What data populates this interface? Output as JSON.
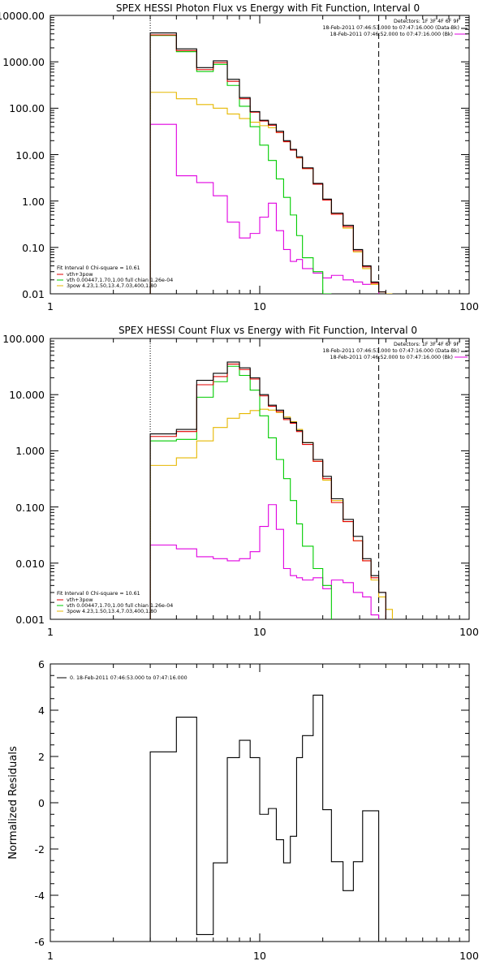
{
  "colors": {
    "black": "#000000",
    "red": "#e00000",
    "green": "#00cc00",
    "yellow": "#e6b800",
    "magenta": "#e000e0",
    "orange": "#ff9900"
  },
  "chart_data": [
    {
      "type": "line",
      "scale": "loglog",
      "title": "SPEX HESSI Photon Flux vs Energy with Fit Function, Interval 0",
      "xlabel": "",
      "ylabel": "",
      "xlim": [
        1,
        100
      ],
      "ylim": [
        0.01,
        10000
      ],
      "x_ticks": [
        "1",
        "10",
        "100"
      ],
      "y_ticks": [
        "10000.00",
        "1000.00",
        "100.00",
        "10.00",
        "1.00",
        "0.10",
        "0.01"
      ],
      "legend_tr": [
        "Detectors: 1F 3F 4F 6F 9F",
        "18-Feb-2011 07:46:53.000 to 07:47:16.000 (Data-Bk)",
        "18-Feb-2011 07:46:52.000 to 07:47:16.000 (Bk)"
      ],
      "legend_bl": [
        "Fit Interval 0   Chi-square = 10.61",
        "vth+3pow",
        "vth 0.00447,1.70,1.00  full chian 1.26e-04",
        "3pow 4.23,1.50,13.4,7.03,400,1.80"
      ],
      "vlines": [
        3,
        37
      ],
      "series": [
        {
          "legend": "Data-Bk",
          "edges": [
            3,
            4,
            5,
            6,
            7,
            8,
            9,
            10,
            11,
            12,
            13,
            14,
            15,
            16,
            18,
            20,
            22,
            25,
            28,
            31,
            34,
            37,
            40
          ],
          "values": [
            4200,
            1900,
            750,
            1050,
            420,
            170,
            85,
            55,
            45,
            32,
            20,
            13,
            9,
            5.2,
            2.4,
            1.1,
            0.55,
            0.3,
            0.09,
            0.04,
            0.018,
            0.011
          ]
        },
        {
          "legend": "vth+3pow",
          "edges": [
            3,
            4,
            5,
            6,
            7,
            8,
            9,
            10,
            11,
            12,
            13,
            14,
            15,
            16,
            18,
            20,
            22,
            25,
            28,
            31,
            34,
            37,
            40
          ],
          "values": [
            3800,
            1750,
            680,
            960,
            380,
            160,
            82,
            53,
            43,
            30,
            19,
            12.5,
            8.6,
            5,
            2.3,
            1.05,
            0.52,
            0.28,
            0.085,
            0.038,
            0.017,
            0.011
          ]
        },
        {
          "legend": "vth",
          "edges": [
            3,
            4,
            5,
            6,
            7,
            8,
            9,
            10,
            11,
            12,
            13,
            14,
            15,
            16,
            18,
            20,
            22
          ],
          "values": [
            3700,
            1650,
            620,
            880,
            310,
            110,
            40,
            16,
            7.5,
            3,
            1.2,
            0.5,
            0.18,
            0.06,
            0.03,
            0.009
          ]
        },
        {
          "legend": "3pow",
          "edges": [
            3,
            4,
            5,
            6,
            7,
            8,
            9,
            10,
            11,
            12,
            13,
            14,
            15,
            16,
            18,
            20,
            22,
            25,
            28,
            31,
            34,
            37,
            40,
            43
          ],
          "values": [
            220,
            160,
            120,
            100,
            75,
            60,
            50,
            42,
            38,
            30,
            19,
            12.5,
            8.5,
            5,
            2.3,
            1.05,
            0.52,
            0.26,
            0.08,
            0.035,
            0.016,
            0.011,
            0.009
          ]
        },
        {
          "legend": "Bk",
          "edges": [
            3,
            4,
            5,
            6,
            7,
            8,
            9,
            10,
            11,
            12,
            13,
            14,
            15,
            16,
            18,
            20,
            22,
            25,
            28,
            31,
            34,
            37
          ],
          "values": [
            45,
            3.5,
            2.5,
            1.3,
            0.35,
            0.16,
            0.2,
            0.45,
            0.9,
            0.23,
            0.09,
            0.05,
            0.055,
            0.035,
            0.028,
            0.022,
            0.025,
            0.02,
            0.018,
            0.016,
            0.017
          ]
        }
      ]
    },
    {
      "type": "line",
      "scale": "loglog",
      "title": "SPEX HESSI Count Flux vs Energy with Fit Function, Interval 0",
      "xlabel": "",
      "ylabel": "",
      "xlim": [
        1,
        100
      ],
      "ylim": [
        0.001,
        100
      ],
      "x_ticks": [
        "1",
        "10",
        "100"
      ],
      "y_ticks": [
        "100.000",
        "10.000",
        "1.000",
        "0.100",
        "0.010",
        "0.001"
      ],
      "legend_tr": [
        "Detectors: 1F 3F 4F 6F 9F",
        "18-Feb-2011 07:46:53.000 to 07:47:16.000 (Data-Bk)",
        "18-Feb-2011 07:46:52.000 to 07:47:16.000 (Bk)"
      ],
      "legend_bl": [
        "Fit Interval 0   Chi-square = 10.61",
        "vth+3pow",
        "vth 0.00447,1.70,1.00  full chian 1.26e-04",
        "3pow 4.23,1.50,13.4,7.03,400,1.80"
      ],
      "vlines": [
        3,
        37
      ],
      "series": [
        {
          "legend": "Data-Bk",
          "edges": [
            3,
            4,
            5,
            6,
            7,
            8,
            9,
            10,
            11,
            12,
            13,
            14,
            15,
            16,
            18,
            20,
            22,
            25,
            28,
            31,
            34,
            37,
            40
          ],
          "values": [
            2,
            2.4,
            18,
            24,
            38,
            30,
            20,
            10,
            6.5,
            5.3,
            3.8,
            3.2,
            2.3,
            1.4,
            0.7,
            0.35,
            0.14,
            0.06,
            0.03,
            0.012,
            0.006,
            0.003
          ]
        },
        {
          "legend": "vth+3pow",
          "edges": [
            3,
            4,
            5,
            6,
            7,
            8,
            9,
            10,
            11,
            12,
            13,
            14,
            15,
            16,
            18,
            20,
            22,
            25,
            28,
            31,
            34,
            37,
            40
          ],
          "values": [
            1.8,
            2.2,
            15,
            21,
            35,
            28,
            19,
            9.5,
            6.2,
            5,
            3.6,
            3.1,
            2.2,
            1.3,
            0.65,
            0.32,
            0.12,
            0.055,
            0.025,
            0.011,
            0.0055,
            0.003
          ]
        },
        {
          "legend": "vth",
          "edges": [
            3,
            4,
            5,
            6,
            7,
            8,
            9,
            10,
            11,
            12,
            13,
            14,
            15,
            16,
            18,
            20,
            22
          ],
          "values": [
            1.5,
            1.6,
            9,
            17,
            32,
            22,
            12,
            4.2,
            1.7,
            0.7,
            0.32,
            0.13,
            0.05,
            0.02,
            0.008,
            0.004
          ]
        },
        {
          "legend": "3pow",
          "edges": [
            3,
            4,
            5,
            6,
            7,
            8,
            9,
            10,
            11,
            12,
            13,
            14,
            15,
            16,
            18,
            20,
            22,
            25,
            28,
            31,
            34,
            37,
            40,
            43
          ],
          "values": [
            0.55,
            0.75,
            1.5,
            2.6,
            3.8,
            4.6,
            5.2,
            5.5,
            5.3,
            4.8,
            4,
            3.3,
            2.4,
            1.4,
            0.65,
            0.3,
            0.13,
            0.055,
            0.025,
            0.011,
            0.005,
            0.0025,
            0.0015
          ]
        },
        {
          "legend": "Bk",
          "edges": [
            3,
            4,
            5,
            6,
            7,
            8,
            9,
            10,
            11,
            12,
            13,
            14,
            15,
            16,
            18,
            20,
            22,
            25,
            28,
            31,
            34,
            37
          ],
          "values": [
            0.021,
            0.018,
            0.013,
            0.012,
            0.011,
            0.012,
            0.016,
            0.045,
            0.11,
            0.04,
            0.008,
            0.006,
            0.0055,
            0.005,
            0.0055,
            0.0035,
            0.005,
            0.0045,
            0.003,
            0.0025,
            0.0012
          ]
        }
      ]
    },
    {
      "type": "line",
      "scale": "logx",
      "title": "",
      "xlabel": "",
      "ylabel": "Normalized Residuals",
      "xlim": [
        1,
        100
      ],
      "ylim": [
        -6,
        6
      ],
      "x_ticks": [
        "1",
        "10",
        "100"
      ],
      "y_ticks": [
        "6",
        "4",
        "2",
        "0",
        "-2",
        "-4",
        "-6"
      ],
      "legend": [
        "0. 18-Feb-2011 07:46:53.000 to 07:47:16.000"
      ],
      "series": [
        {
          "legend": "0",
          "edges": [
            3,
            4,
            5,
            6,
            7,
            8,
            9,
            10,
            11,
            12,
            13,
            14,
            15,
            16,
            18,
            20,
            22,
            25,
            28,
            31,
            34,
            37
          ],
          "values": [
            2.2,
            3.7,
            -5.7,
            -2.6,
            1.95,
            2.7,
            1.95,
            -0.5,
            -0.25,
            -1.6,
            -2.6,
            -1.45,
            1.95,
            2.9,
            4.65,
            -0.3,
            -2.55,
            -3.8,
            -2.55,
            -0.35,
            -0.35
          ]
        }
      ]
    }
  ]
}
